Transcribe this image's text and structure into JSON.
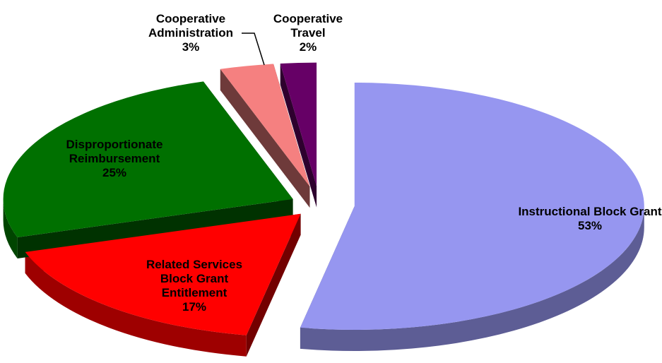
{
  "chart_data": {
    "type": "pie",
    "categories": [
      "Instructional Block Grant",
      "Related Services Block Grant Entitlement",
      "Disproportionate Reimbursement",
      "Cooperative Administration",
      "Cooperative Travel"
    ],
    "values": [
      53,
      17,
      25,
      3,
      2
    ],
    "value_labels": [
      "53%",
      "17%",
      "25%",
      "3%",
      "2%"
    ],
    "colors": [
      "#9696f0",
      "#ff0000",
      "#007000",
      "#f58080",
      "#660066"
    ]
  }
}
